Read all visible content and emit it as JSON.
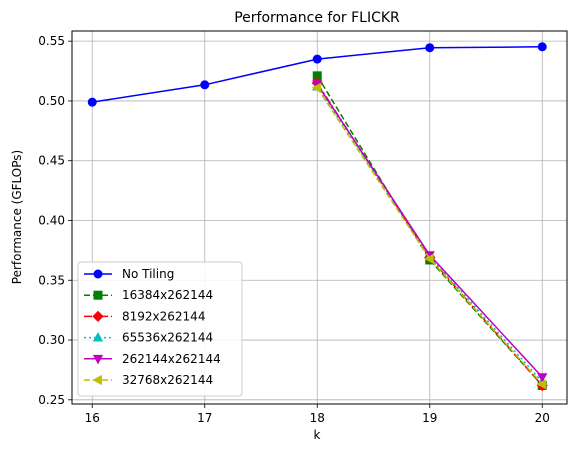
{
  "chart_data": {
    "type": "line",
    "title": "Performance for FLICKR",
    "xlabel": "k",
    "ylabel": "Performance (GFLOPs)",
    "xlim": [
      15.82,
      20.22
    ],
    "ylim": [
      0.2465,
      0.5585
    ],
    "xticks": [
      16,
      17,
      18,
      19,
      20
    ],
    "xtick_labels": [
      "16",
      "17",
      "18",
      "19",
      "20"
    ],
    "yticks": [
      0.25,
      0.3,
      0.35,
      0.4,
      0.45,
      0.5,
      0.55
    ],
    "ytick_labels": [
      "0.25",
      "0.30",
      "0.35",
      "0.40",
      "0.45",
      "0.50",
      "0.55"
    ],
    "grid": true,
    "legend_position": "lower-left",
    "series": [
      {
        "name": "No Tiling",
        "color": "#0000ff",
        "dash": "solid",
        "marker": "circle",
        "x": [
          16,
          17,
          18,
          19,
          20
        ],
        "y": [
          0.499,
          0.5135,
          0.535,
          0.5445,
          0.5453
        ]
      },
      {
        "name": "16384x262144",
        "color": "#008000",
        "dash": "dashed",
        "marker": "square",
        "x": [
          18,
          19,
          20
        ],
        "y": [
          0.521,
          0.367,
          0.262
        ]
      },
      {
        "name": "8192x262144",
        "color": "#ff0000",
        "dash": "dashdot",
        "marker": "diamond",
        "x": [
          18,
          19,
          20
        ],
        "y": [
          0.515,
          0.369,
          0.262
        ]
      },
      {
        "name": "65536x262144",
        "color": "#00bfbf",
        "dash": "dotted",
        "marker": "triangle-up",
        "x": [
          18,
          19,
          20
        ],
        "y": [
          0.512,
          0.37,
          0.265
        ]
      },
      {
        "name": "262144x262144",
        "color": "#bf00bf",
        "dash": "solid",
        "marker": "triangle-down",
        "x": [
          18,
          19,
          20
        ],
        "y": [
          0.514,
          0.371,
          0.269
        ]
      },
      {
        "name": "32768x262144",
        "color": "#bfbf00",
        "dash": "dashed",
        "marker": "triangle-left",
        "x": [
          18,
          19,
          20
        ],
        "y": [
          0.511,
          0.368,
          0.263
        ]
      }
    ]
  }
}
